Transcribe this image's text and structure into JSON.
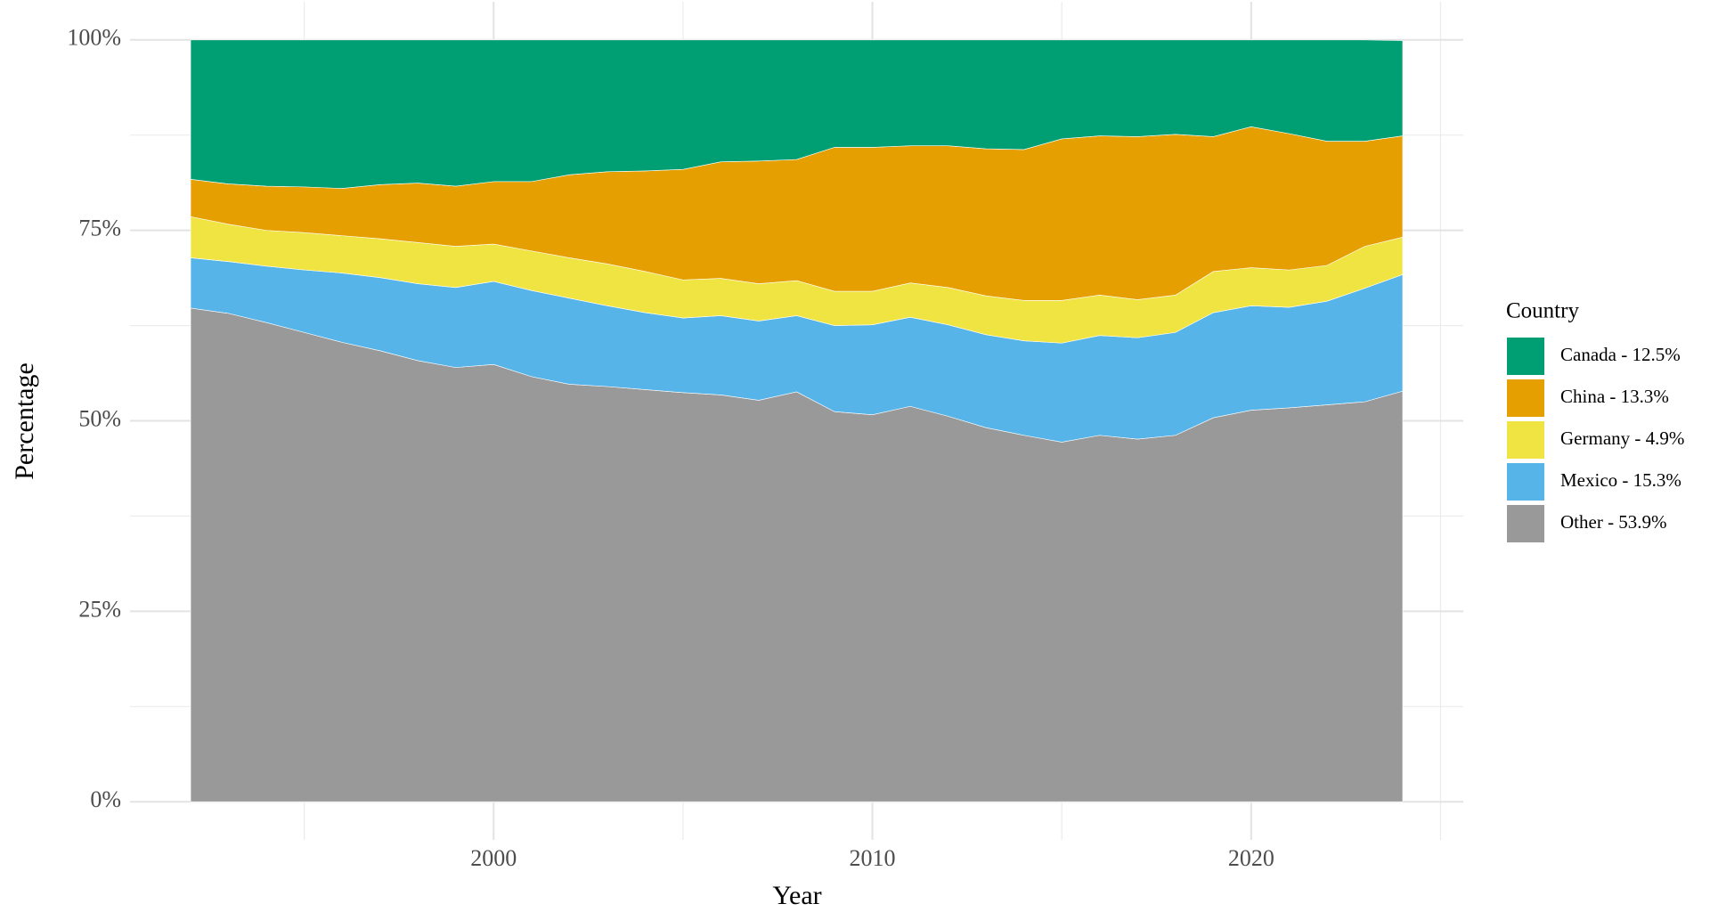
{
  "chart_data": {
    "type": "stacked-area",
    "x_label": "Year",
    "y_label": "Percentage",
    "legend_title": "Country",
    "x": [
      1992,
      1993,
      1994,
      1995,
      1996,
      1997,
      1998,
      1999,
      2000,
      2001,
      2002,
      2003,
      2004,
      2005,
      2006,
      2007,
      2008,
      2009,
      2010,
      2011,
      2012,
      2013,
      2014,
      2015,
      2016,
      2017,
      2018,
      2019,
      2020,
      2021,
      2022,
      2023,
      2024
    ],
    "series": [
      {
        "name": "Canada - 12.5%",
        "color": "#009E73",
        "values": [
          18.3,
          18.9,
          19.2,
          19.3,
          19.5,
          19.0,
          18.8,
          19.2,
          18.6,
          18.6,
          17.7,
          17.3,
          17.2,
          17.0,
          16.0,
          15.9,
          15.7,
          14.1,
          14.1,
          13.9,
          13.9,
          14.3,
          14.4,
          13.0,
          12.6,
          12.7,
          12.4,
          12.7,
          11.4,
          12.3,
          13.3,
          13.3,
          12.5
        ]
      },
      {
        "name": "China - 13.3%",
        "color": "#E69F00",
        "values": [
          4.9,
          5.3,
          5.8,
          6.0,
          6.2,
          7.1,
          7.8,
          7.9,
          8.2,
          9.1,
          10.9,
          12.1,
          13.2,
          14.5,
          15.3,
          16.1,
          15.9,
          18.9,
          18.9,
          18.0,
          18.6,
          19.3,
          19.8,
          21.2,
          20.9,
          21.4,
          21.1,
          17.7,
          18.5,
          17.9,
          16.3,
          13.8,
          13.3
        ]
      },
      {
        "name": "Germany - 4.9%",
        "color": "#F0E442",
        "values": [
          5.4,
          4.9,
          4.7,
          4.9,
          4.9,
          5.1,
          5.4,
          5.4,
          4.9,
          5.2,
          5.3,
          5.5,
          5.4,
          5.0,
          4.9,
          4.9,
          4.6,
          4.5,
          4.4,
          4.5,
          4.9,
          5.1,
          5.3,
          5.6,
          5.3,
          5.0,
          4.9,
          5.4,
          5.0,
          4.9,
          4.7,
          5.5,
          4.9
        ]
      },
      {
        "name": "Mexico - 15.3%",
        "color": "#56B4E9",
        "values": [
          6.6,
          6.8,
          7.4,
          8.2,
          9.1,
          9.6,
          10.1,
          10.5,
          10.9,
          11.3,
          11.3,
          10.6,
          10.1,
          9.8,
          10.4,
          10.4,
          10.0,
          11.3,
          11.8,
          11.7,
          12.0,
          12.2,
          12.4,
          13.0,
          13.1,
          13.3,
          13.5,
          13.8,
          13.7,
          13.2,
          13.6,
          14.9,
          15.3
        ]
      },
      {
        "name": "Other - 53.9%",
        "color": "#999999",
        "values": [
          64.8,
          64.1,
          62.9,
          61.6,
          60.3,
          59.2,
          57.9,
          57.0,
          57.4,
          55.8,
          54.8,
          54.5,
          54.1,
          53.7,
          53.4,
          52.7,
          53.8,
          51.2,
          50.8,
          51.9,
          50.6,
          49.1,
          48.1,
          47.2,
          48.1,
          47.6,
          48.1,
          50.4,
          51.4,
          51.7,
          52.1,
          52.5,
          53.9
        ]
      }
    ],
    "xlim": [
      1990.4,
      2025.6
    ],
    "xticks": [
      2000,
      2010,
      2020
    ],
    "x_minor_ticks": [
      1995,
      2005,
      2015,
      2025
    ],
    "ylim": [
      -5,
      105
    ],
    "yticks": [
      {
        "value": 0,
        "label": "0%"
      },
      {
        "value": 25,
        "label": "25%"
      },
      {
        "value": 50,
        "label": "50%"
      },
      {
        "value": 75,
        "label": "75%"
      },
      {
        "value": 100,
        "label": "100%"
      }
    ],
    "y_minor_ticks": [
      12.5,
      37.5,
      62.5,
      87.5
    ],
    "grid": true,
    "legend": "right"
  }
}
